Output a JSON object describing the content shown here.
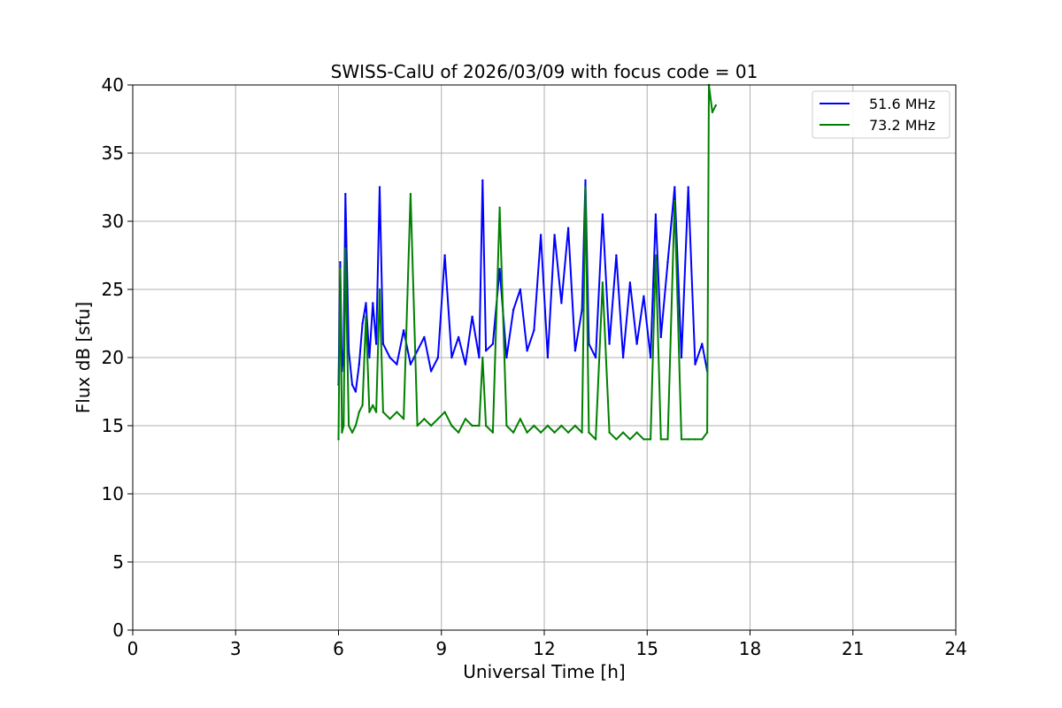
{
  "chart_data": {
    "type": "line",
    "title": "SWISS-CalU of 2026/03/09 with focus code = 01",
    "xlabel": "Universal Time [h]",
    "ylabel": "Flux dB [sfu]",
    "xlim": [
      0,
      24
    ],
    "ylim": [
      0,
      40
    ],
    "xticks": [
      0,
      3,
      6,
      9,
      12,
      15,
      18,
      21,
      24
    ],
    "yticks": [
      0,
      5,
      10,
      15,
      20,
      25,
      30,
      35,
      40
    ],
    "grid": true,
    "legend_position": "top-right",
    "series": [
      {
        "name": "51.6 MHz",
        "color": "#0000ff",
        "x": [
          6.0,
          6.05,
          6.1,
          6.15,
          6.2,
          6.3,
          6.4,
          6.5,
          6.6,
          6.7,
          6.8,
          6.9,
          7.0,
          7.1,
          7.2,
          7.3,
          7.5,
          7.7,
          7.9,
          8.1,
          8.3,
          8.5,
          8.7,
          8.9,
          9.1,
          9.3,
          9.5,
          9.7,
          9.9,
          10.1,
          10.2,
          10.3,
          10.5,
          10.7,
          10.9,
          11.1,
          11.3,
          11.5,
          11.7,
          11.9,
          12.1,
          12.3,
          12.5,
          12.7,
          12.9,
          13.1,
          13.2,
          13.3,
          13.5,
          13.7,
          13.9,
          14.1,
          14.3,
          14.5,
          14.7,
          14.9,
          15.1,
          15.25,
          15.4,
          15.6,
          15.8,
          16.0,
          16.2,
          16.4,
          16.6,
          16.75
        ],
        "y": [
          18.0,
          27.0,
          19.0,
          20.5,
          32.0,
          20.5,
          18.0,
          17.5,
          19.5,
          22.5,
          24.0,
          20.0,
          24.0,
          21.0,
          32.5,
          21.0,
          20.0,
          19.5,
          22.0,
          19.5,
          20.5,
          21.5,
          19.0,
          20.0,
          27.5,
          20.0,
          21.5,
          19.5,
          23.0,
          20.0,
          33.0,
          20.5,
          21.0,
          26.5,
          20.0,
          23.5,
          25.0,
          20.5,
          22.0,
          29.0,
          20.0,
          29.0,
          24.0,
          29.5,
          20.5,
          23.5,
          33.0,
          21.0,
          20.0,
          30.5,
          21.0,
          27.5,
          20.0,
          25.5,
          21.0,
          24.5,
          20.0,
          30.5,
          21.5,
          27.0,
          32.5,
          20.0,
          32.5,
          19.5,
          21.0,
          19.0
        ]
      },
      {
        "name": "73.2 MHz",
        "color": "#008000",
        "x": [
          6.0,
          6.05,
          6.1,
          6.15,
          6.2,
          6.3,
          6.4,
          6.5,
          6.6,
          6.7,
          6.8,
          6.9,
          7.0,
          7.1,
          7.2,
          7.3,
          7.5,
          7.7,
          7.9,
          8.1,
          8.3,
          8.5,
          8.7,
          8.9,
          9.1,
          9.3,
          9.5,
          9.7,
          9.9,
          10.1,
          10.2,
          10.3,
          10.5,
          10.7,
          10.9,
          11.1,
          11.3,
          11.5,
          11.7,
          11.9,
          12.1,
          12.3,
          12.5,
          12.7,
          12.9,
          13.1,
          13.2,
          13.3,
          13.5,
          13.7,
          13.9,
          14.1,
          14.3,
          14.5,
          14.7,
          14.9,
          15.1,
          15.25,
          15.4,
          15.6,
          15.8,
          16.0,
          16.2,
          16.4,
          16.6,
          16.75,
          16.8,
          16.9,
          17.0
        ],
        "y": [
          14.0,
          26.5,
          14.5,
          15.0,
          28.0,
          15.0,
          14.5,
          15.0,
          16.0,
          16.5,
          23.0,
          16.0,
          16.5,
          16.0,
          25.0,
          16.0,
          15.5,
          16.0,
          15.5,
          32.0,
          15.0,
          15.5,
          15.0,
          15.5,
          16.0,
          15.0,
          14.5,
          15.5,
          15.0,
          15.0,
          20.0,
          15.0,
          14.5,
          31.0,
          15.0,
          14.5,
          15.5,
          14.5,
          15.0,
          14.5,
          15.0,
          14.5,
          15.0,
          14.5,
          15.0,
          14.5,
          32.5,
          14.5,
          14.0,
          25.5,
          14.5,
          14.0,
          14.5,
          14.0,
          14.5,
          14.0,
          14.0,
          27.5,
          14.0,
          14.0,
          31.5,
          14.0,
          14.0,
          14.0,
          14.0,
          14.5,
          40.0,
          38.0,
          38.5
        ]
      }
    ]
  }
}
